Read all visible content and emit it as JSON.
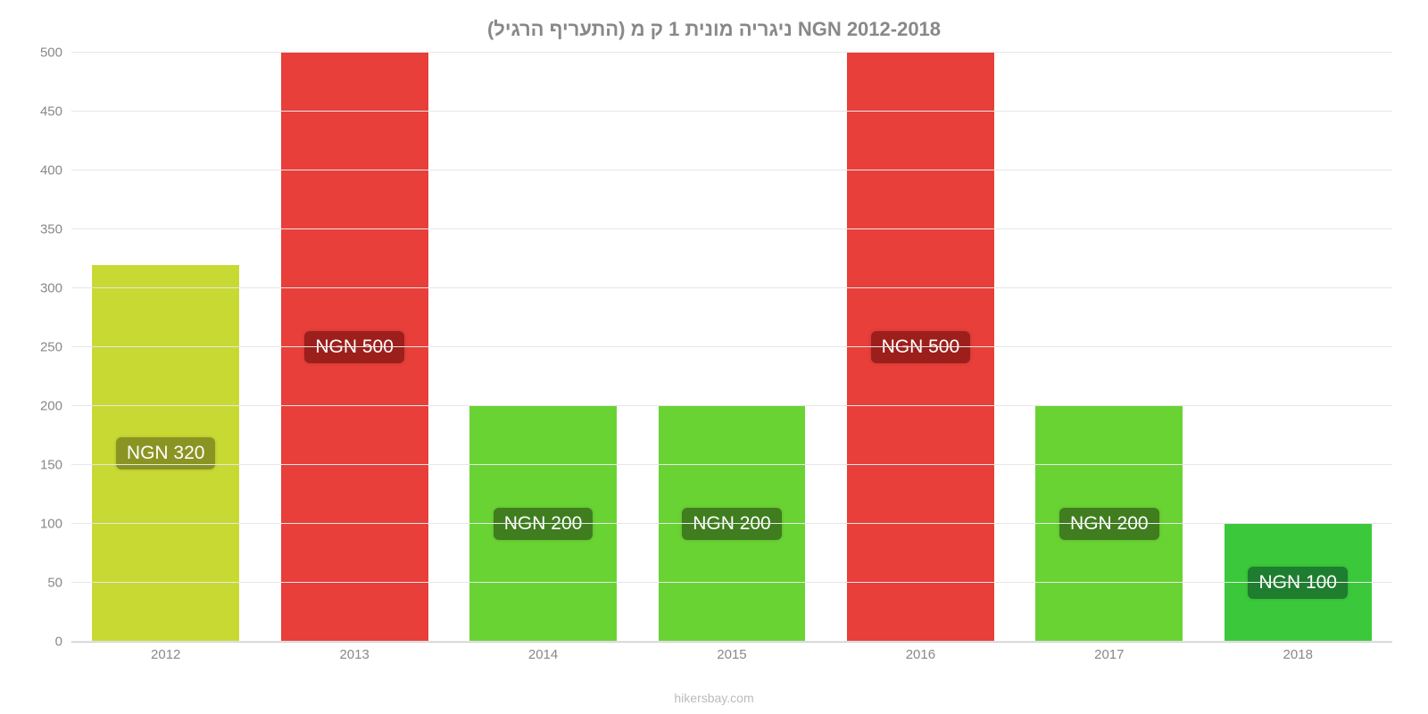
{
  "chart": {
    "type": "bar",
    "title": "ניגריה מונית 1 ק מ (התעריף הרגיל) NGN 2012-2018",
    "title_color": "#888888",
    "title_fontsize": 22,
    "background_color": "#ffffff",
    "grid_color": "#e6e6e6",
    "axis_color": "#cccccc",
    "tick_label_color": "#888888",
    "tick_label_fontsize": 15,
    "ylim": [
      0,
      500
    ],
    "ytick_step": 50,
    "yticks": [
      0,
      50,
      100,
      150,
      200,
      250,
      300,
      350,
      400,
      450,
      500
    ],
    "categories": [
      "2012",
      "2013",
      "2014",
      "2015",
      "2016",
      "2017",
      "2018"
    ],
    "values": [
      320,
      500,
      200,
      200,
      500,
      200,
      100
    ],
    "bar_colors": [
      "#c9d934",
      "#e83f3a",
      "#6ad334",
      "#6ad334",
      "#e83f3a",
      "#6ad334",
      "#3bc93b"
    ],
    "bar_width": 0.78,
    "labels": [
      "NGN 320",
      "NGN 500",
      "NGN 200",
      "NGN 200",
      "NGN 500",
      "NGN 200",
      "NGN 100"
    ],
    "label_bg_colors": [
      "#8a9422",
      "#9c1f1c",
      "#3f7d1f",
      "#3f7d1f",
      "#9c1f1c",
      "#3f7d1f",
      "#1f7d2f"
    ],
    "label_text_color": "#ffffff",
    "label_fontsize": 21,
    "attribution": "hikersbay.com"
  }
}
